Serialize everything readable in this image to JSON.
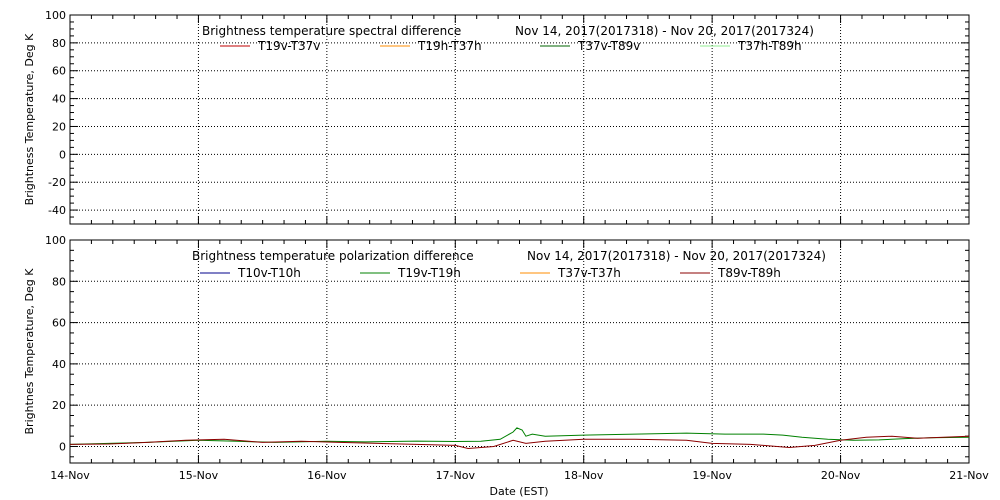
{
  "chart_data": [
    {
      "type": "line",
      "title": "Brightness temperature spectral difference",
      "date_range": "Nov 14, 2017(2017318) - Nov 20, 2017(2017324)",
      "xlabel": "",
      "ylabel": "Brightness Temperature, Deg K",
      "ylim": [
        -50,
        100
      ],
      "yticks": [
        "-40",
        "-20",
        "0",
        "20",
        "40",
        "60",
        "80",
        "100"
      ],
      "xlim": [
        0,
        7
      ],
      "grid": true,
      "legend_position": "top",
      "series": [
        {
          "name": "T19v-T37v",
          "color": "#c00000",
          "x": [],
          "y": []
        },
        {
          "name": "T19h-T37h",
          "color": "#ff8c00",
          "x": [],
          "y": []
        },
        {
          "name": "T37v-T89v",
          "color": "#006400",
          "x": [],
          "y": []
        },
        {
          "name": "T37h-T89h",
          "color": "#90ee90",
          "x": [],
          "y": []
        }
      ]
    },
    {
      "type": "line",
      "title": "Brightness temperature polarization difference",
      "date_range": "Nov 14, 2017(2017318) - Nov 20, 2017(2017324)",
      "xlabel": "Date (EST)",
      "ylabel": "Brightnes Temperature, Deg K",
      "ylim": [
        -8,
        100
      ],
      "yticks": [
        "0",
        "20",
        "40",
        "60",
        "80",
        "100"
      ],
      "xlim": [
        0,
        7
      ],
      "xticks": [
        "14-Nov",
        "15-Nov",
        "16-Nov",
        "17-Nov",
        "18-Nov",
        "19-Nov",
        "20-Nov",
        "21-Nov"
      ],
      "grid": true,
      "legend_position": "top",
      "series": [
        {
          "name": "T10v-T10h",
          "color": "#00008b",
          "x": [],
          "y": []
        },
        {
          "name": "T19v-T19h",
          "color": "#008000",
          "x": [
            0,
            0.3,
            0.6,
            1.0,
            1.3,
            1.6,
            2.0,
            2.3,
            2.7,
            3.0,
            3.2,
            3.35,
            3.45,
            3.48,
            3.52,
            3.55,
            3.6,
            3.7,
            4.0,
            4.4,
            4.8,
            5.1,
            5.4,
            5.55,
            5.7,
            5.9,
            6.1,
            6.3,
            6.5,
            6.7,
            7.0
          ],
          "y": [
            1.0,
            1.5,
            2.0,
            3.0,
            2.5,
            2.0,
            2.5,
            2.2,
            2.6,
            2.4,
            2.5,
            3.5,
            7.0,
            9.0,
            8.0,
            5.0,
            6.0,
            5.0,
            5.5,
            6.0,
            6.5,
            6.0,
            6.0,
            5.5,
            4.5,
            3.5,
            3.0,
            3.2,
            3.8,
            4.2,
            4.5
          ]
        },
        {
          "name": "T37v-T37h",
          "color": "#ff8c00",
          "x": [],
          "y": []
        },
        {
          "name": "T89v-T89h",
          "color": "#8b0000",
          "x": [
            0,
            0.3,
            0.6,
            0.9,
            1.2,
            1.5,
            1.8,
            2.1,
            2.4,
            2.7,
            3.0,
            3.1,
            3.3,
            3.45,
            3.55,
            3.7,
            4.0,
            4.4,
            4.8,
            5.0,
            5.3,
            5.6,
            5.8,
            6.0,
            6.2,
            6.4,
            6.6,
            6.8,
            7.0
          ],
          "y": [
            1.0,
            1.2,
            2.0,
            3.0,
            3.5,
            2.0,
            2.5,
            2.0,
            1.5,
            1.0,
            0.5,
            -1.0,
            0.0,
            3.0,
            1.5,
            2.5,
            3.5,
            3.5,
            3.0,
            1.5,
            1.0,
            -0.5,
            0.5,
            3.0,
            4.5,
            5.0,
            4.0,
            4.5,
            5.0
          ]
        }
      ]
    }
  ]
}
